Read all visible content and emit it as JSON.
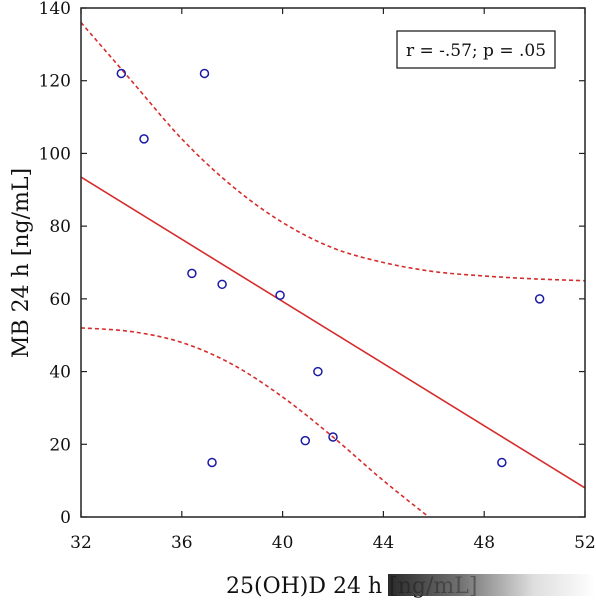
{
  "chart_data": {
    "type": "scatter",
    "xlabel": "25(OH)D 24 h [ng/mL]",
    "ylabel": "MB 24 h [ng/mL]",
    "xlim": [
      32,
      52
    ],
    "ylim": [
      0,
      140
    ],
    "xticks": [
      32,
      36,
      40,
      44,
      48,
      52
    ],
    "yticks": [
      0,
      20,
      40,
      60,
      80,
      100,
      120,
      140
    ],
    "grid": false,
    "annotation": "r = -.57; p = .05",
    "annotation_position": "top-right",
    "point_color": "#1a1aa6",
    "line_color": "#d62c2c",
    "points": [
      {
        "x": 33.6,
        "y": 122
      },
      {
        "x": 34.5,
        "y": 104
      },
      {
        "x": 36.4,
        "y": 67
      },
      {
        "x": 36.9,
        "y": 122
      },
      {
        "x": 37.2,
        "y": 15
      },
      {
        "x": 37.6,
        "y": 64
      },
      {
        "x": 39.9,
        "y": 61
      },
      {
        "x": 40.9,
        "y": 21
      },
      {
        "x": 41.4,
        "y": 40
      },
      {
        "x": 42.0,
        "y": 22
      },
      {
        "x": 48.7,
        "y": 15
      },
      {
        "x": 50.2,
        "y": 60
      }
    ],
    "regression_line": [
      {
        "x": 32,
        "y": 93.5
      },
      {
        "x": 52,
        "y": 8
      }
    ],
    "confidence_upper": [
      {
        "x": 32,
        "y": 136
      },
      {
        "x": 34,
        "y": 120
      },
      {
        "x": 36,
        "y": 104
      },
      {
        "x": 38,
        "y": 91
      },
      {
        "x": 40,
        "y": 81
      },
      {
        "x": 42,
        "y": 74
      },
      {
        "x": 44,
        "y": 70
      },
      {
        "x": 46,
        "y": 67.5
      },
      {
        "x": 48,
        "y": 66.3
      },
      {
        "x": 50,
        "y": 65.5
      },
      {
        "x": 52,
        "y": 65
      }
    ],
    "confidence_lower": [
      {
        "x": 32,
        "y": 52
      },
      {
        "x": 34,
        "y": 51
      },
      {
        "x": 36,
        "y": 48
      },
      {
        "x": 38,
        "y": 42
      },
      {
        "x": 40,
        "y": 33
      },
      {
        "x": 42,
        "y": 22
      },
      {
        "x": 44,
        "y": 10
      },
      {
        "x": 45.8,
        "y": 0
      }
    ]
  }
}
